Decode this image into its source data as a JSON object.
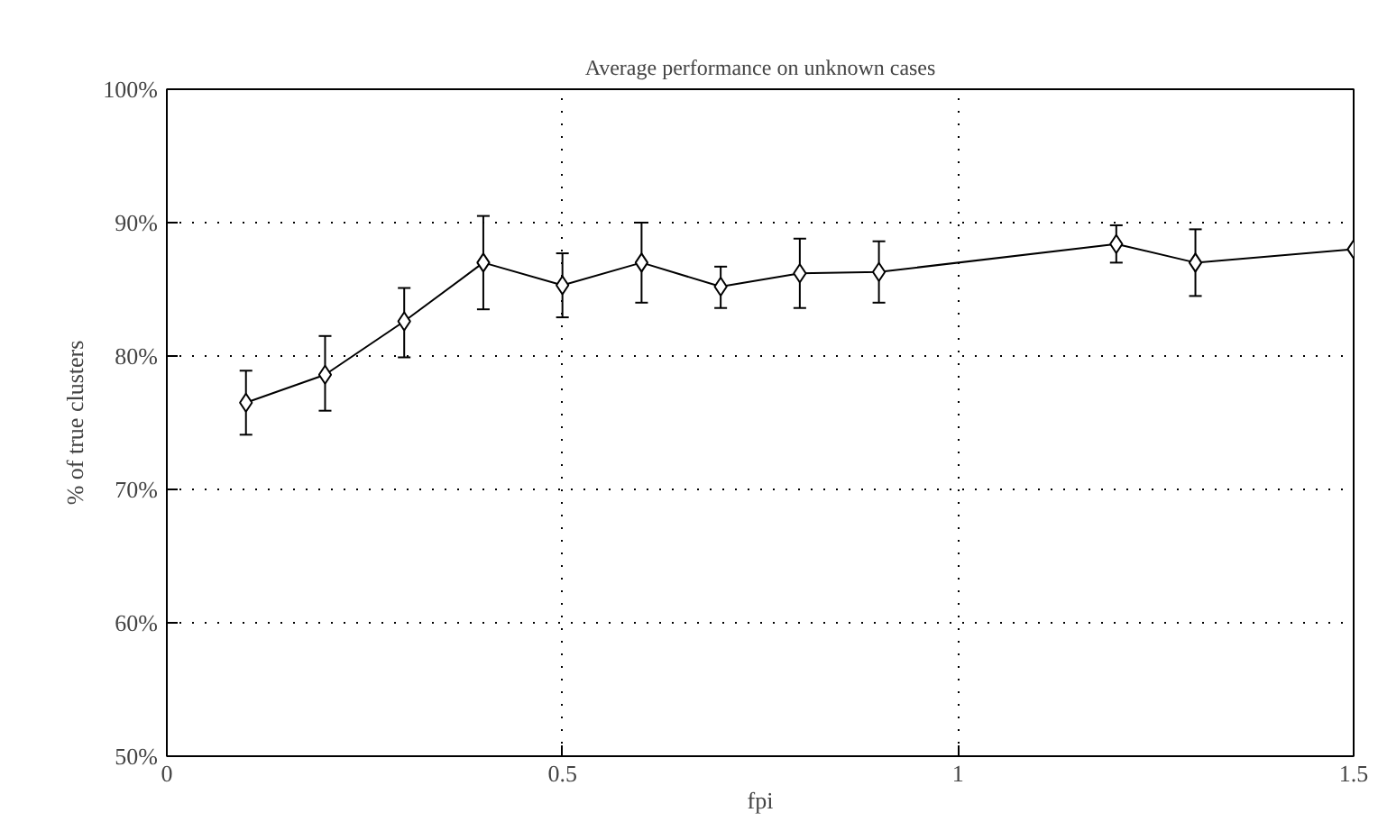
{
  "chart_data": {
    "type": "line",
    "title": "Average performance on unknown cases",
    "xlabel": "fpi",
    "ylabel": "% of true clusters",
    "x": [
      0.1,
      0.2,
      0.3,
      0.4,
      0.5,
      0.6,
      0.7,
      0.8,
      0.9,
      1.2,
      1.3,
      1.5
    ],
    "series": [
      {
        "color": "#000000",
        "values": [
          76.5,
          78.6,
          82.6,
          87.0,
          85.3,
          87.0,
          85.2,
          86.2,
          86.3,
          88.4,
          87.0,
          88.0
        ],
        "errors": [
          [
            74.1,
            78.9
          ],
          [
            75.9,
            81.5
          ],
          [
            79.9,
            85.1
          ],
          [
            83.5,
            90.5
          ],
          [
            82.9,
            87.7
          ],
          [
            84.0,
            90.0
          ],
          [
            83.6,
            86.7
          ],
          [
            83.6,
            88.8
          ],
          [
            84.0,
            88.6
          ],
          [
            87.0,
            89.8
          ],
          [
            84.5,
            89.5
          ],
          null
        ]
      }
    ],
    "xlim": [
      0,
      1.5
    ],
    "ylim": [
      50,
      100
    ],
    "xticks": [
      0,
      0.5,
      1,
      1.5
    ],
    "yticks": [
      {
        "value": 50,
        "label": "50%"
      },
      {
        "value": 60,
        "label": "60%"
      },
      {
        "value": 70,
        "label": "70%"
      },
      {
        "value": 80,
        "label": "80%"
      },
      {
        "value": 90,
        "label": "90%"
      },
      {
        "value": 100,
        "label": "100%"
      }
    ],
    "grid": true,
    "marker": "diamond",
    "line_style": "solid"
  }
}
